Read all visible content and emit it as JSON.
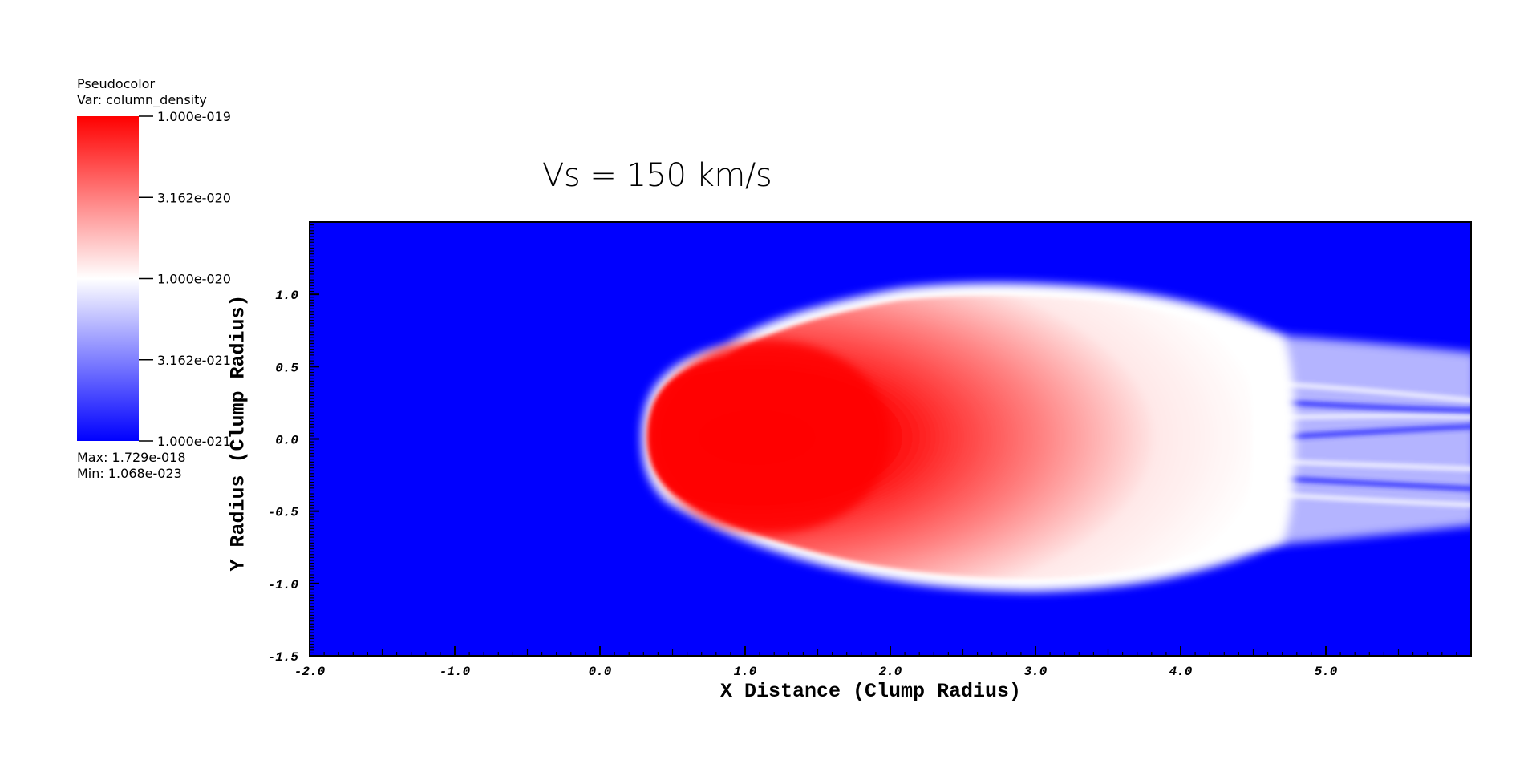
{
  "legend": {
    "line1": "Pseudocolor",
    "line2": "Var: column_density",
    "max_label": "Max:  1.729e-018",
    "min_label": "Min:  1.068e-023",
    "ticks": [
      "1.000e-019",
      "3.162e-020",
      "1.000e-020",
      "3.162e-021",
      "1.000e-021"
    ],
    "colors": {
      "high": "#ff0000",
      "mid": "#ffffff",
      "low": "#0000ff"
    }
  },
  "chart_data": {
    "type": "heatmap",
    "title": "Vs = 150 km/s",
    "xlabel": "X Distance (Clump Radius)",
    "ylabel": "Y Radius (Clump Radius)",
    "xlim": [
      -2.0,
      6.0
    ],
    "ylim": [
      -1.5,
      1.5
    ],
    "x_ticks": [
      "-2.0",
      "-1.0",
      "0.0",
      "1.0",
      "2.0",
      "3.0",
      "4.0",
      "5.0"
    ],
    "y_ticks": [
      "-1.5",
      "-1.0",
      "-0.5",
      "0.0",
      "0.5",
      "1.0"
    ],
    "x_tick_values": [
      -2,
      -1,
      0,
      1,
      2,
      3,
      4,
      5
    ],
    "y_tick_values": [
      -1.5,
      -1.0,
      -0.5,
      0.0,
      0.5,
      1.0
    ],
    "colormap": "blue-white-red (log scale)",
    "color_range": [
      1e-21,
      1e-19
    ],
    "background_color": "#0000ff",
    "grid": false
  }
}
